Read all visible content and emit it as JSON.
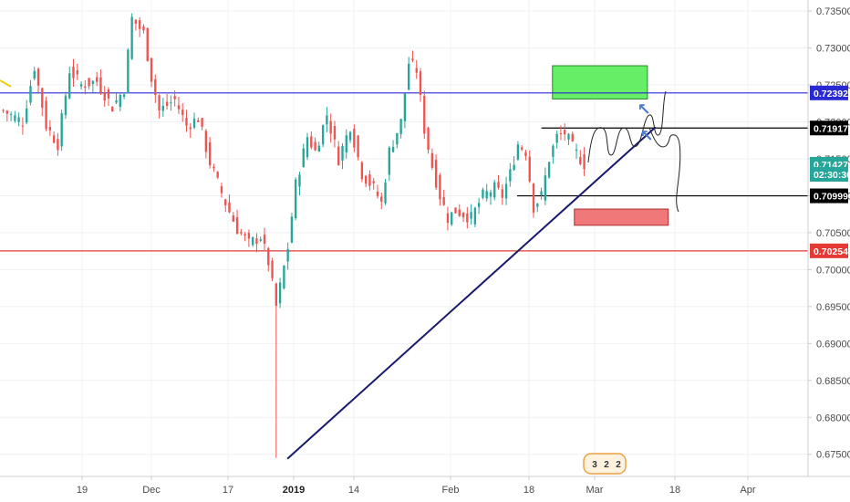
{
  "chart_data": {
    "type": "candlestick",
    "y_axis": {
      "position": "right",
      "ticks": [
        "0.73500",
        "0.73000",
        "0.72500",
        "0.72000",
        "0.71500",
        "0.71000",
        "0.70500",
        "0.70000",
        "0.69500",
        "0.69000",
        "0.68500",
        "0.68000",
        "0.67500"
      ],
      "range": [
        0.672,
        0.7365
      ]
    },
    "x_axis": {
      "ticks": [
        "19",
        "Dec",
        "17",
        "2019",
        "14",
        "Feb",
        "18",
        "Mar",
        "18",
        "Apr"
      ],
      "bold_ticks": [
        "2019"
      ]
    },
    "price_tags": [
      {
        "label": "0.72392",
        "value": 0.72392,
        "color": "#2a2ad4",
        "text_color": "#ffffff"
      },
      {
        "label": "0.71917",
        "value": 0.71917,
        "color": "#000000",
        "text_color": "#ffffff"
      },
      {
        "label": "0.71427",
        "value": 0.71427,
        "color": "#26a69a",
        "text_color": "#ffffff"
      },
      {
        "label": "02:30:36",
        "value": 0.7129,
        "color": "#26a69a",
        "text_color": "#ffffff"
      },
      {
        "label": "0.70999",
        "value": 0.70999,
        "color": "#000000",
        "text_color": "#ffffff"
      },
      {
        "label": "0.70254",
        "value": 0.70254,
        "color": "#e53935",
        "text_color": "#ffffff"
      }
    ],
    "horizontal_lines": [
      {
        "value": 0.72392,
        "color": "#2a2ad4",
        "from_x": 0,
        "to_x": 1
      },
      {
        "value": 0.71917,
        "color": "#000000",
        "from_x": 0.67,
        "to_x": 1
      },
      {
        "value": 0.70999,
        "color": "#000000",
        "from_x": 0.64,
        "to_x": 1
      },
      {
        "value": 0.70254,
        "color": "#e53935",
        "from_x": 0,
        "to_x": 1
      }
    ],
    "trendline": {
      "from": [
        0.3557,
        0.6744
      ],
      "to": [
        0.8113,
        0.7193
      ],
      "color": "#1a1a6e"
    },
    "zones": [
      {
        "name": "target",
        "x0": 0.6837,
        "x1": 0.8012,
        "y0": 0.7231,
        "y1": 0.7276,
        "fill": "#66ee66",
        "stroke": "#2a8a2a"
      },
      {
        "name": "stop",
        "x0": 0.7108,
        "x1": 0.827,
        "y0": 0.706,
        "y1": 0.7082,
        "fill": "#f07878",
        "stroke": "#a83030"
      }
    ],
    "candles": {
      "count": 150,
      "x_start": 0.004,
      "x_end": 0.723,
      "anchors": [
        [
          0,
          0.7215
        ],
        [
          5,
          0.72
        ],
        [
          8,
          0.7275
        ],
        [
          11,
          0.7195
        ],
        [
          14,
          0.717
        ],
        [
          17,
          0.727
        ],
        [
          20,
          0.725
        ],
        [
          24,
          0.7255
        ],
        [
          28,
          0.722
        ],
        [
          31,
          0.7245
        ],
        [
          33,
          0.734
        ],
        [
          36,
          0.732
        ],
        [
          38,
          0.726
        ],
        [
          40,
          0.7215
        ],
        [
          44,
          0.723
        ],
        [
          47,
          0.7195
        ],
        [
          50,
          0.7205
        ],
        [
          53,
          0.7145
        ],
        [
          57,
          0.709
        ],
        [
          60,
          0.7055
        ],
        [
          63,
          0.7035
        ],
        [
          66,
          0.7045
        ],
        [
          68,
          0.701
        ],
        [
          70,
          0.695
        ],
        [
          73,
          0.703
        ],
        [
          75,
          0.7115
        ],
        [
          78,
          0.718
        ],
        [
          80,
          0.716
        ],
        [
          83,
          0.721
        ],
        [
          86,
          0.715
        ],
        [
          89,
          0.7195
        ],
        [
          92,
          0.713
        ],
        [
          95,
          0.711
        ],
        [
          97,
          0.709
        ],
        [
          99,
          0.716
        ],
        [
          102,
          0.72
        ],
        [
          104,
          0.728
        ],
        [
          106,
          0.727
        ],
        [
          108,
          0.719
        ],
        [
          110,
          0.714
        ],
        [
          112,
          0.71
        ],
        [
          114,
          0.707
        ],
        [
          116,
          0.708
        ],
        [
          118,
          0.7075
        ],
        [
          120,
          0.707
        ],
        [
          123,
          0.71
        ],
        [
          126,
          0.711
        ],
        [
          128,
          0.71
        ],
        [
          130,
          0.713
        ],
        [
          132,
          0.717
        ],
        [
          134,
          0.716
        ],
        [
          136,
          0.7085
        ],
        [
          138,
          0.71
        ],
        [
          140,
          0.715
        ],
        [
          142,
          0.718
        ],
        [
          144,
          0.7185
        ],
        [
          146,
          0.7165
        ],
        [
          148,
          0.715
        ],
        [
          149,
          0.7143
        ]
      ],
      "spike": {
        "index": 70,
        "low": 0.6745
      },
      "up_color": "#26a69a",
      "down_color": "#ef5350"
    },
    "arrow_glyph": "↖",
    "hand_drawn_path_color": "#222222",
    "event_badges": [
      "3",
      "2",
      "2"
    ]
  }
}
